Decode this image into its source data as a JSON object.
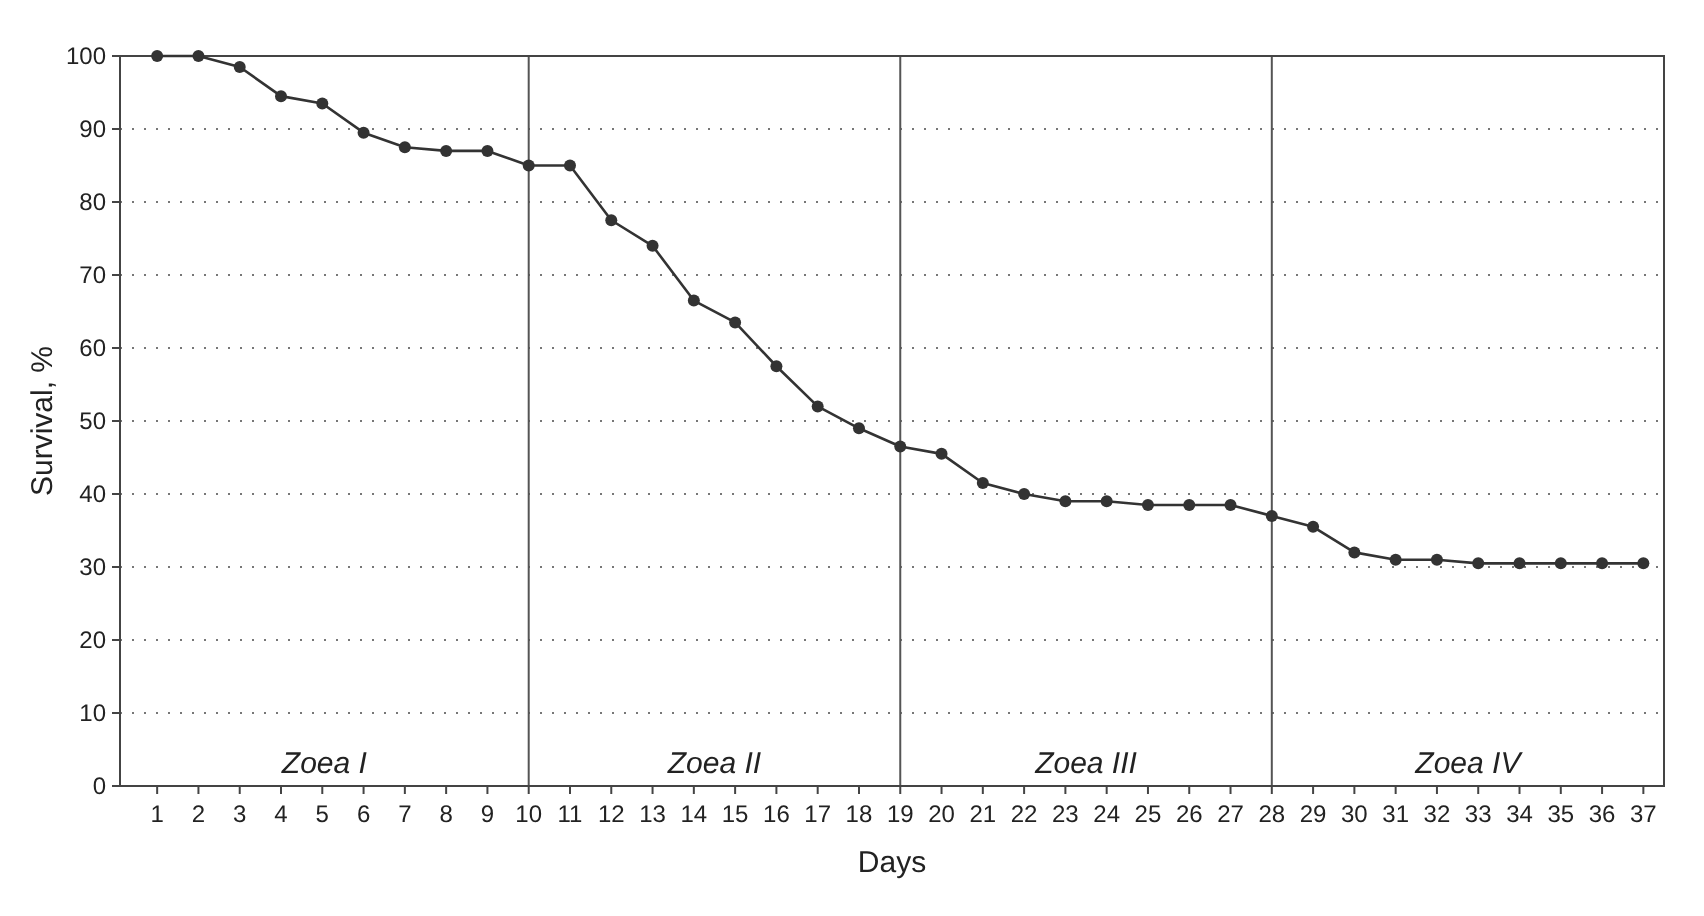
{
  "chart_data": {
    "type": "line",
    "xlabel": "Days",
    "ylabel": "Survival, %",
    "x": [
      1,
      2,
      3,
      4,
      5,
      6,
      7,
      8,
      9,
      10,
      11,
      12,
      13,
      14,
      15,
      16,
      17,
      18,
      19,
      20,
      21,
      22,
      23,
      24,
      25,
      26,
      27,
      28,
      29,
      30,
      31,
      32,
      33,
      34,
      35,
      36,
      37
    ],
    "series": [
      {
        "color": "#333333",
        "values": [
          100,
          100,
          98.5,
          94.5,
          93.5,
          89.5,
          87.5,
          87,
          87,
          85,
          85,
          77.5,
          74,
          66.5,
          63.5,
          57.5,
          52,
          49,
          46.5,
          45.5,
          41.5,
          40,
          39,
          39,
          38.5,
          38.5,
          38.5,
          37,
          35.5,
          32,
          31,
          31,
          30.5,
          30.5,
          30.5,
          30.5,
          30.5
        ]
      }
    ],
    "xlim": [
      0.1,
      37.5
    ],
    "xticks": [
      1,
      2,
      3,
      4,
      5,
      6,
      7,
      8,
      9,
      10,
      11,
      12,
      13,
      14,
      15,
      16,
      17,
      18,
      19,
      20,
      21,
      22,
      23,
      24,
      25,
      26,
      27,
      28,
      29,
      30,
      31,
      32,
      33,
      34,
      35,
      36,
      37
    ],
    "ylim": [
      0,
      100
    ],
    "yticks": [
      0,
      10,
      20,
      30,
      40,
      50,
      60,
      70,
      80,
      90,
      100
    ],
    "annotations": [
      "Zoea I",
      "Zoea II",
      "Zoea III",
      "Zoea IV"
    ],
    "ref_lines": [
      {
        "axis": "x",
        "value": 10,
        "color": "#555555"
      },
      {
        "axis": "x",
        "value": 19,
        "color": "#555555"
      },
      {
        "axis": "x",
        "value": 28,
        "color": "#555555"
      }
    ],
    "grid": "y",
    "marker": "circle",
    "line_style": "solid"
  }
}
